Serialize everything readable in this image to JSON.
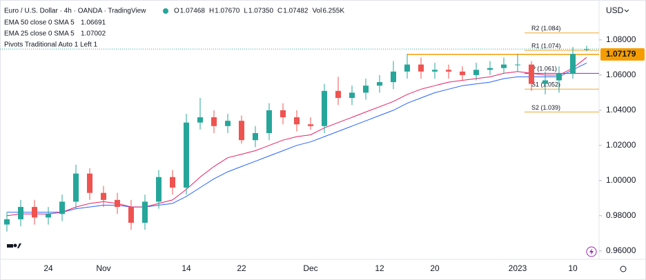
{
  "header": {
    "symbol": "Euro / U.S. Dollar · 4h · OANDA · TradingView",
    "ohlc": [
      {
        "key": "O",
        "value": "1.07468"
      },
      {
        "key": "H",
        "value": "1.07670"
      },
      {
        "key": "L",
        "value": "1.07350"
      },
      {
        "key": "C",
        "value": "1.07482"
      },
      {
        "key": "Vol",
        "value": "6.255K"
      }
    ],
    "indicators": [
      {
        "name": "EMA 50 close 0 SMA 5",
        "value": "1.06691",
        "color": "#2962ff"
      },
      {
        "name": "EMA 25 close 0 SMA 5",
        "value": "1.07002",
        "color": "#e91e63"
      },
      {
        "name": "Pivots Traditional Auto 1 Left 1"
      }
    ]
  },
  "chart_data": {
    "type": "candlestick",
    "currency": "USD",
    "categories": [
      null,
      null,
      null,
      "24",
      null,
      null,
      null,
      "Nov",
      null,
      null,
      null,
      null,
      null,
      "14",
      null,
      null,
      null,
      "22",
      null,
      null,
      null,
      null,
      "Dec",
      null,
      null,
      null,
      null,
      "12",
      null,
      null,
      null,
      "20",
      null,
      null,
      null,
      null,
      null,
      "2023",
      null,
      null,
      null,
      "10",
      null
    ],
    "open": [
      0.975,
      0.978,
      0.985,
      0.979,
      0.981,
      0.988,
      1.004,
      0.993,
      0.989,
      0.985,
      0.976,
      0.988,
      1.002,
      0.996,
      1.033,
      1.036,
      1.031,
      1.034,
      1.023,
      1.027,
      1.04,
      1.036,
      1.032,
      1.031,
      1.051,
      1.047,
      1.05,
      1.054,
      1.056,
      1.062,
      1.066,
      1.062,
      1.063,
      1.062,
      1.06,
      1.063,
      1.064,
      1.066,
      1.066,
      1.055,
      1.057,
      1.061,
      1.07468
    ],
    "high": [
      0.982,
      0.989,
      0.989,
      0.985,
      0.992,
      1.009,
      1.007,
      0.997,
      0.993,
      0.989,
      0.992,
      1.006,
      1.006,
      1.038,
      1.047,
      1.04,
      1.038,
      1.037,
      1.031,
      1.044,
      1.044,
      1.04,
      1.036,
      1.055,
      1.059,
      1.054,
      1.058,
      1.06,
      1.068,
      1.072,
      1.07,
      1.067,
      1.066,
      1.065,
      1.067,
      1.068,
      1.07,
      1.072,
      1.068,
      1.062,
      1.065,
      1.076,
      1.0767
    ],
    "low": [
      0.971,
      0.974,
      0.975,
      0.975,
      0.977,
      0.984,
      0.989,
      0.985,
      0.981,
      0.972,
      0.972,
      0.984,
      0.992,
      0.992,
      1.029,
      1.027,
      1.027,
      1.021,
      1.019,
      1.023,
      1.032,
      1.028,
      1.029,
      1.027,
      1.043,
      1.043,
      1.046,
      1.05,
      1.052,
      1.058,
      1.058,
      1.058,
      1.058,
      1.057,
      1.057,
      1.06,
      1.061,
      1.062,
      1.051,
      1.049,
      1.05,
      1.058,
      1.0735
    ],
    "close": [
      0.978,
      0.985,
      0.979,
      0.981,
      0.988,
      1.004,
      0.993,
      0.989,
      0.985,
      0.976,
      0.988,
      1.002,
      0.996,
      1.033,
      1.036,
      1.031,
      1.034,
      1.023,
      1.027,
      1.04,
      1.036,
      1.032,
      1.031,
      1.051,
      1.047,
      1.05,
      1.054,
      1.056,
      1.062,
      1.066,
      1.062,
      1.063,
      1.062,
      1.06,
      1.063,
      1.064,
      1.066,
      1.066,
      1.055,
      1.057,
      1.061,
      1.072,
      1.07482
    ],
    "up_color": "#26a69a",
    "down_color": "#ef5350",
    "series": [
      {
        "name": "EMA 50",
        "color": "#2962ff",
        "values": [
          0.982,
          0.982,
          0.982,
          0.982,
          0.982,
          0.984,
          0.985,
          0.986,
          0.986,
          0.985,
          0.985,
          0.986,
          0.987,
          0.991,
          0.996,
          1.001,
          1.005,
          1.008,
          1.011,
          1.014,
          1.017,
          1.02,
          1.022,
          1.025,
          1.028,
          1.031,
          1.034,
          1.037,
          1.04,
          1.044,
          1.047,
          1.05,
          1.052,
          1.054,
          1.055,
          1.056,
          1.058,
          1.059,
          1.059,
          1.059,
          1.059,
          1.063,
          1.06691
        ]
      },
      {
        "name": "EMA 25",
        "color": "#e91e63",
        "values": [
          0.98,
          0.981,
          0.981,
          0.981,
          0.982,
          0.985,
          0.987,
          0.988,
          0.987,
          0.985,
          0.985,
          0.987,
          0.989,
          0.995,
          1.002,
          1.008,
          1.013,
          1.015,
          1.017,
          1.02,
          1.023,
          1.025,
          1.026,
          1.03,
          1.033,
          1.036,
          1.039,
          1.042,
          1.045,
          1.049,
          1.052,
          1.054,
          1.056,
          1.057,
          1.058,
          1.059,
          1.061,
          1.062,
          1.061,
          1.06,
          1.06,
          1.064,
          1.07002
        ]
      }
    ],
    "pivots": [
      {
        "label": "R2 (1.084)",
        "value": 1.084,
        "color": "#f0a830"
      },
      {
        "label": "R1 (1.074)",
        "value": 1.074,
        "color": "#f0a830"
      },
      {
        "label": "P (1.061)",
        "value": 1.061,
        "color": "#9c27b0"
      },
      {
        "label": "S1 (1.052)",
        "value": 1.052,
        "color": "#f0a830"
      },
      {
        "label": "S2 (1.039)",
        "value": 1.039,
        "color": "#f0a830"
      }
    ],
    "pivot_start": 38,
    "hline": {
      "value": 1.07179,
      "label": "1.07179",
      "color": "#f59d00",
      "start": 29
    },
    "ylim": [
      0.956,
      1.098
    ],
    "yticks": [
      {
        "value": 1.08,
        "label": "1.08000"
      },
      {
        "value": 1.06,
        "label": "1.06000"
      },
      {
        "value": 1.04,
        "label": "1.04000"
      },
      {
        "value": 1.02,
        "label": "1.02000"
      },
      {
        "value": 1.0,
        "label": "1.00000"
      },
      {
        "value": 0.98,
        "label": "0.98000"
      },
      {
        "value": 0.96,
        "label": "0.96000"
      }
    ],
    "grid": false
  }
}
